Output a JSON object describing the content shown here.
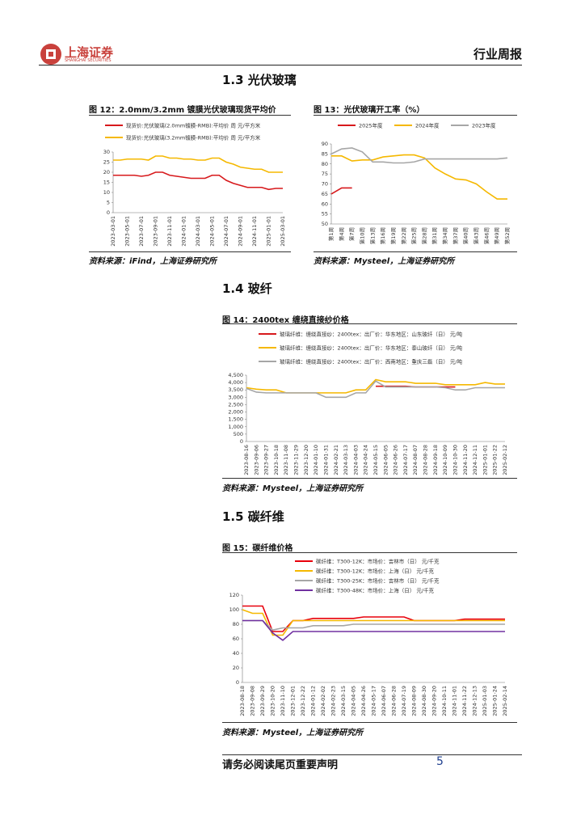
{
  "header": {
    "company": "上海证券",
    "company_en": "SHANGHAI SECURITIES",
    "report_type": "行业周报"
  },
  "sections": [
    "1.3 光伏玻璃",
    "1.4 玻纤",
    "1.5 碳纤维"
  ],
  "footer": {
    "disclaimer": "请务必阅读尾页重要声明",
    "page": "5"
  },
  "chart_data": [
    {
      "type": "line",
      "title": "图 12：2.0mm/3.2mm 镀膜光伏玻璃现货平均价",
      "source": "资料来源：iFind，上海证券研究所",
      "categories": [
        "2023-03-01",
        null,
        "2023-05-01",
        null,
        "2023-07-01",
        null,
        "2023-09-01",
        null,
        "2023-11-01",
        null,
        "2024-01-01",
        null,
        "2024-03-01",
        null,
        "2024-05-01",
        null,
        "2024-07-01",
        null,
        "2024-09-01",
        null,
        "2024-11-01",
        null,
        "2025-01-01",
        null,
        "2025-03-01"
      ],
      "series": [
        {
          "name": "现货价:光伏玻璃(2.0mm镀膜-RMB):平均价 周 元/平方米",
          "color": "#d7191c",
          "values": [
            18.5,
            18.5,
            18.5,
            18.5,
            18,
            18.5,
            20,
            20,
            18.5,
            18,
            17.5,
            17,
            17,
            17,
            18.5,
            18.5,
            16,
            14.5,
            13.5,
            12.5,
            12.5,
            12.5,
            11.5,
            12,
            12
          ]
        },
        {
          "name": "现货价:光伏玻璃(3.2mm镀膜-RMB):平均价 周 元/平方米",
          "color": "#f5b800",
          "values": [
            26,
            26,
            26.5,
            26.5,
            26.5,
            26,
            28,
            28,
            27,
            27,
            26.5,
            26.5,
            26,
            26,
            27,
            27,
            25,
            24,
            22.5,
            22,
            21.5,
            21.5,
            20,
            20,
            20
          ]
        }
      ],
      "ylim": [
        0,
        30
      ],
      "yticks": [
        0,
        5,
        10,
        15,
        20,
        25,
        30
      ],
      "legend": "top"
    },
    {
      "type": "line",
      "title": "图 13：光伏玻璃开工率（%）",
      "source": "资料来源：Mysteel，上海证券研究所",
      "categories": [
        "第1周",
        "第4周",
        "第7周",
        "第10周",
        "第13周",
        "第16周",
        "第19周",
        "第22周",
        "第25周",
        "第28周",
        "第31周",
        "第34周",
        "第37周",
        "第40周",
        "第43周",
        "第46周",
        "第49周",
        "第52周"
      ],
      "series": [
        {
          "name": "2025年度",
          "color": "#d7191c",
          "values": [
            65,
            68,
            68,
            null,
            null,
            null,
            null,
            null,
            null,
            null,
            null,
            null,
            null,
            null,
            null,
            null,
            null,
            null
          ]
        },
        {
          "name": "2024年度",
          "color": "#f5b800",
          "values": [
            84,
            84,
            81.5,
            82,
            82,
            83.5,
            84,
            84.5,
            84.5,
            83,
            78,
            75,
            72.5,
            72,
            70,
            66,
            62.5,
            62.5
          ]
        },
        {
          "name": "2023年度",
          "color": "#a6a6a6",
          "values": [
            85,
            87.5,
            88,
            86,
            81,
            81,
            80.5,
            80.5,
            81,
            82.5,
            82.5,
            82.5,
            82.5,
            82.5,
            82.5,
            82.5,
            82.5,
            83
          ]
        }
      ],
      "ylim": [
        50,
        90
      ],
      "yticks": [
        50,
        55,
        60,
        65,
        70,
        75,
        80,
        85,
        90
      ],
      "legend": "top"
    },
    {
      "type": "line",
      "title": "图 14：2400tex 缠绕直接纱价格",
      "source": "资料来源：Mysteel，上海证券研究所",
      "categories": [
        "2023-08-16",
        "2023-09-06",
        "2023-09-27",
        "2023-10-18",
        "2023-11-08",
        "2023-11-29",
        "2023-12-20",
        "2024-01-10",
        "2024-01-31",
        "2024-02-21",
        "2024-03-13",
        "2024-04-03",
        "2024-04-24",
        "2024-05-15",
        "2024-06-05",
        "2024-06-26",
        "2024-07-17",
        "2024-08-07",
        "2024-08-28",
        "2024-09-18",
        "2024-10-09",
        "2024-10-30",
        "2024-11-20",
        "2024-12-11",
        "2025-01-01",
        "2025-01-22",
        "2025-02-12"
      ],
      "series": [
        {
          "name": "玻璃纤维：缠绕直接纱：2400tex：出厂价：华东地区：山东玻纤（日） 元/吨",
          "color": "#d7191c",
          "values": [
            null,
            null,
            null,
            null,
            null,
            null,
            null,
            null,
            null,
            null,
            null,
            null,
            null,
            3750,
            3750,
            3750,
            3750,
            3700,
            3700,
            3700,
            3700,
            3700,
            null,
            null,
            null,
            null,
            null
          ]
        },
        {
          "name": "玻璃纤维：缠绕直接纱：2400tex：出厂价：华东地区：泰山玻纤（日） 元/吨",
          "color": "#f5b800",
          "values": [
            3650,
            3550,
            3500,
            3500,
            3300,
            3300,
            3300,
            3300,
            3300,
            3300,
            3300,
            3500,
            3500,
            4200,
            4050,
            4050,
            4050,
            3950,
            3950,
            3950,
            3850,
            3850,
            3850,
            3850,
            4000,
            3900,
            3900
          ]
        },
        {
          "name": "玻璃纤维：缠绕直接纱：2400tex：出厂价：西南地区：重庆三磊（日） 元/吨",
          "color": "#a6a6a6",
          "values": [
            3600,
            3350,
            3300,
            3300,
            3300,
            3300,
            3300,
            3300,
            3000,
            3000,
            3000,
            3300,
            3300,
            4100,
            3700,
            3700,
            3700,
            3700,
            3700,
            3700,
            3650,
            3500,
            3500,
            3650,
            3650,
            3650,
            3650
          ]
        }
      ],
      "ylim": [
        0,
        4500
      ],
      "yticks": [
        0,
        500,
        {
          "value": 1000,
          "label": "1,000"
        },
        {
          "value": 1500,
          "label": "1,500"
        },
        {
          "value": 2000,
          "label": "2,000"
        },
        {
          "value": 2500,
          "label": "2,500"
        },
        {
          "value": 3000,
          "label": "3,000"
        },
        {
          "value": 3500,
          "label": "3,500"
        },
        {
          "value": 4000,
          "label": "4,000"
        },
        {
          "value": 4500,
          "label": "4,500"
        }
      ],
      "legend": "top"
    },
    {
      "type": "line",
      "title": "图 15：碳纤维价格",
      "source": "资料来源：Mysteel，上海证券研究所",
      "categories": [
        "2023-08-18",
        "2023-09-08",
        "2023-09-29",
        "2023-10-20",
        "2023-11-10",
        "2023-12-01",
        "2023-12-22",
        "2024-01-12",
        "2024-02-02",
        "2024-02-23",
        "2024-03-15",
        "2024-04-05",
        "2024-04-26",
        "2024-05-17",
        "2024-06-07",
        "2024-06-28",
        "2024-07-19",
        "2024-08-09",
        "2024-08-30",
        "2024-09-20",
        "2024-10-11",
        "2024-11-01",
        "2024-11-22",
        "2024-12-13",
        "2025-01-03",
        "2025-01-24",
        "2025-02-14"
      ],
      "series": [
        {
          "name": "碳纤维：T300-12K：市场价：吉林市（日） 元/千克",
          "color": "#e8000b",
          "values": [
            105,
            105,
            105,
            70,
            70,
            85,
            85,
            88,
            88,
            88,
            88,
            88,
            90,
            90,
            90,
            90,
            90,
            85,
            85,
            85,
            85,
            85,
            87,
            87,
            87,
            87,
            87
          ]
        },
        {
          "name": "碳纤维：T300-12K：市场价：上海（日） 元/千克",
          "color": "#f5b800",
          "values": [
            100,
            95,
            95,
            65,
            65,
            85,
            85,
            85,
            85,
            85,
            85,
            85,
            85,
            85,
            85,
            85,
            85,
            85,
            85,
            85,
            85,
            85,
            85,
            85,
            85,
            85,
            85
          ]
        },
        {
          "name": "碳纤维：T300-25K：市场价：吉林市（日） 元/千克",
          "color": "#a6a6a6",
          "values": [
            85,
            85,
            85,
            72,
            75,
            75,
            75,
            78,
            78,
            78,
            78,
            80,
            80,
            80,
            80,
            80,
            80,
            80,
            80,
            80,
            80,
            80,
            80,
            80,
            80,
            80,
            80
          ]
        },
        {
          "name": "碳纤维：T300-48K：市场价：上海（日） 元/千克",
          "color": "#7030a0",
          "values": [
            85,
            85,
            85,
            68,
            58,
            70,
            70,
            70,
            70,
            70,
            70,
            70,
            70,
            70,
            70,
            70,
            70,
            70,
            70,
            70,
            70,
            70,
            70,
            70,
            70,
            70,
            70
          ]
        }
      ],
      "ylim": [
        0,
        120
      ],
      "yticks": [
        0,
        20,
        40,
        60,
        80,
        100,
        120
      ],
      "legend": "top"
    }
  ]
}
